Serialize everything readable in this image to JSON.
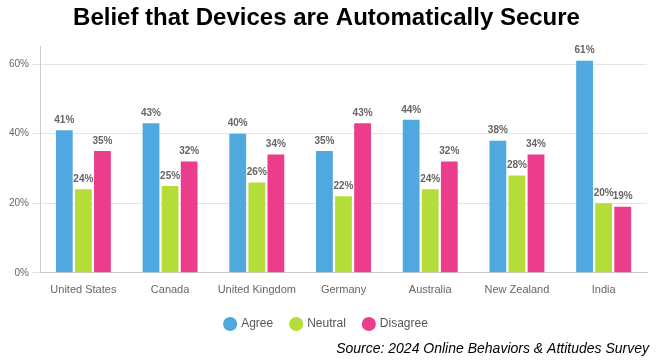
{
  "chart_data": {
    "type": "bar",
    "title": "Belief that Devices are Automatically Secure",
    "categories": [
      "United States",
      "Canada",
      "United Kingdom",
      "Germany",
      "Australia",
      "New Zealand",
      "India"
    ],
    "series": [
      {
        "name": "Agree",
        "color": "#4fa8e0",
        "values": [
          41,
          43,
          40,
          35,
          44,
          38,
          61
        ],
        "value_labels": [
          "41%",
          "43%",
          "40%",
          "35%",
          "44%",
          "38%",
          "61%"
        ]
      },
      {
        "name": "Neutral",
        "color": "#b5dd3a",
        "values": [
          24,
          25,
          26,
          22,
          24,
          28,
          20
        ],
        "value_labels": [
          "24%",
          "25%",
          "26%",
          "22%",
          "24%",
          "28%",
          "20%"
        ]
      },
      {
        "name": "Disagree",
        "color": "#ec3c8c",
        "values": [
          35,
          32,
          34,
          43,
          32,
          34,
          19
        ],
        "value_labels": [
          "35%",
          "32%",
          "34%",
          "43%",
          "32%",
          "34%",
          "19%"
        ]
      }
    ],
    "ylim": [
      0,
      65
    ],
    "yticks": [
      {
        "value": 0,
        "label": "0%"
      },
      {
        "value": 20,
        "label": "20%"
      },
      {
        "value": 40,
        "label": "40%"
      },
      {
        "value": 60,
        "label": "60%"
      }
    ],
    "grid": true,
    "legend": "bottom",
    "data_labels": true,
    "annotations": [
      "Source: 2024 Online Behaviors & Attitudes Survey"
    ]
  }
}
